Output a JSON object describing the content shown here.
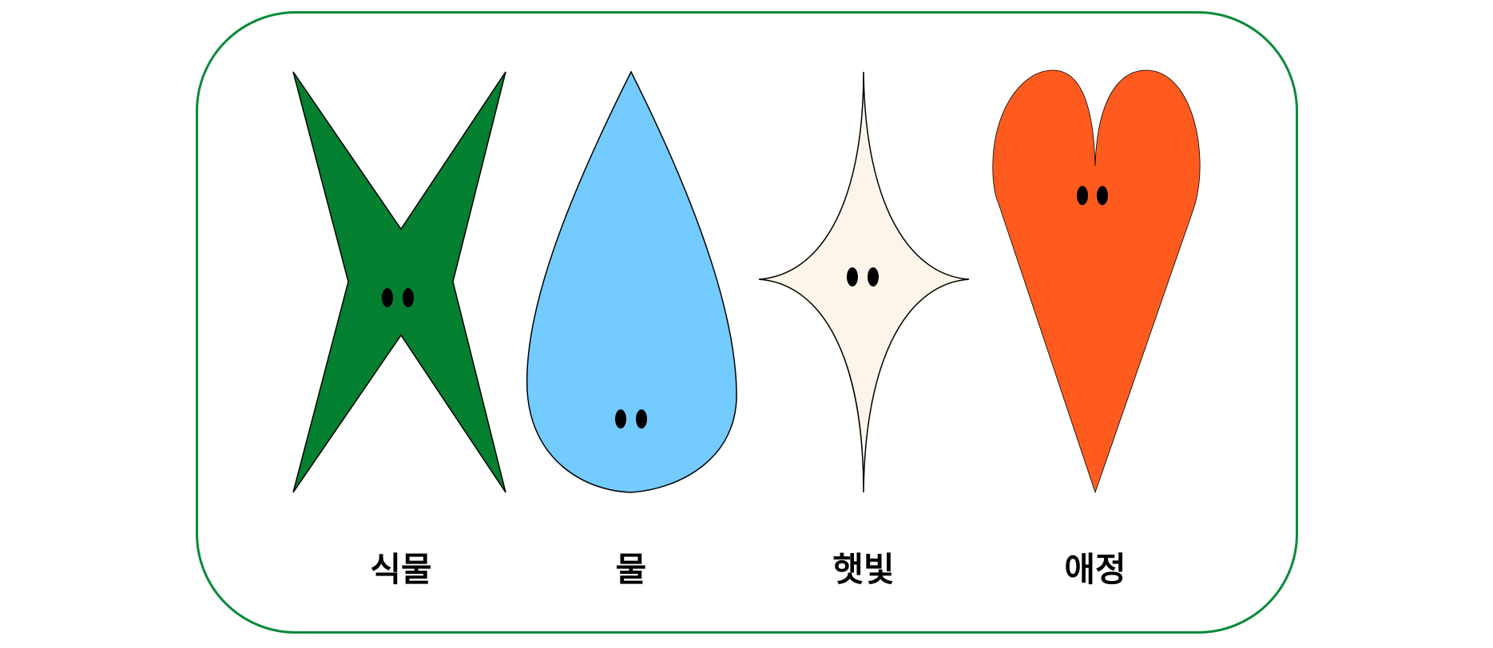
{
  "items": [
    {
      "label": "식물",
      "shape": "x-star-icon",
      "color": "#037f30"
    },
    {
      "label": "물",
      "shape": "water-drop-icon",
      "color": "#74cbff"
    },
    {
      "label": "햇빛",
      "shape": "sparkle-star-icon",
      "color": "#fdf5ea"
    },
    {
      "label": "애정",
      "shape": "heart-icon",
      "color": "#ff5b1f"
    }
  ],
  "colors": {
    "frame_border": "#0a8a3a",
    "eyes": "#000000",
    "outline": "#000000"
  }
}
